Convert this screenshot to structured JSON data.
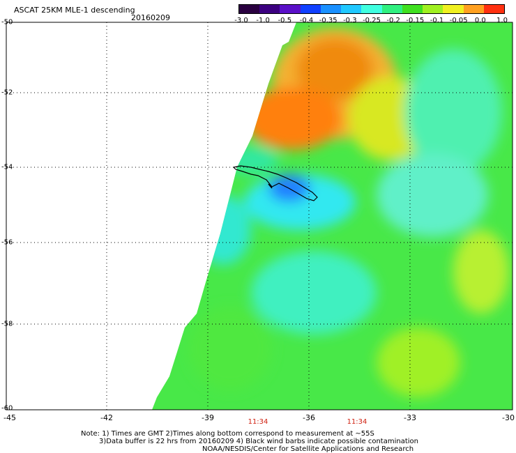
{
  "header": {
    "title": "ASCAT 25KM MLE-1 descending",
    "date": "20160209"
  },
  "colorbar": {
    "labels": [
      "-3.0",
      "-1.0",
      "-0.5",
      "-0.4",
      "-0.35",
      "-0.3",
      "-0.25",
      "-0.2",
      "-0.15",
      "-0.1",
      "-0.05",
      "0.0",
      "1.0"
    ],
    "colors": [
      "#2a0040",
      "#3c0080",
      "#5a10c8",
      "#1040ff",
      "#1a90ff",
      "#20c8ff",
      "#40ffe0",
      "#30f080",
      "#40e020",
      "#a0f020",
      "#f0f020",
      "#ffa020",
      "#ff3010"
    ]
  },
  "axes": {
    "y_labels": [
      "-50",
      "-52",
      "-54",
      "-56",
      "-58",
      "-60"
    ],
    "x_labels": [
      "-45",
      "-42",
      "-39",
      "-36",
      "-33",
      "-30"
    ]
  },
  "times": [
    "11:34",
    "11:34"
  ],
  "notes": {
    "line1": "Note: 1) Times are GMT 2)Times along bottom correspond to measurement at ~55S",
    "line2": "3)Data buffer is 22 hrs from 20160209 4) Black wind barbs indicate possible contamination",
    "line3": "NOAA/NESDIS/Center for Satellite Applications and Research"
  }
}
